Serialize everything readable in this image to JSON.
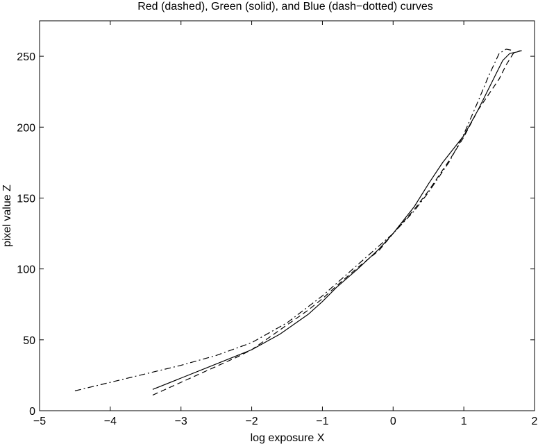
{
  "chart_data": {
    "type": "line",
    "title": "Red (dashed), Green (solid), and Blue (dash−dotted) curves",
    "xlabel": "log exposure X",
    "ylabel": "pixel value Z",
    "xlim": [
      -5,
      2
    ],
    "ylim": [
      0,
      275
    ],
    "xticks": [
      -5,
      -4,
      -3,
      -2,
      -1,
      0,
      1,
      2
    ],
    "xtick_labels": [
      "−5",
      "−4",
      "−3",
      "−2",
      "−1",
      "0",
      "1",
      "2"
    ],
    "yticks": [
      0,
      50,
      100,
      150,
      200,
      250
    ],
    "ytick_labels": [
      "0",
      "50",
      "100",
      "150",
      "200",
      "250"
    ],
    "grid": false,
    "series": [
      {
        "name": "Red",
        "style": "dashed",
        "color": "#000000",
        "x": [
          -3.4,
          -3.0,
          -2.6,
          -2.2,
          -2.0,
          -1.6,
          -1.2,
          -1.0,
          -0.8,
          -0.5,
          -0.2,
          0.0,
          0.3,
          0.5,
          0.8,
          1.0,
          1.2,
          1.5,
          1.6,
          1.7,
          1.8
        ],
        "y": [
          11,
          20,
          29,
          38,
          43,
          57,
          71,
          79,
          88,
          101,
          113,
          125,
          142,
          155,
          177,
          193,
          212,
          234,
          244,
          252,
          254
        ]
      },
      {
        "name": "Green",
        "style": "solid",
        "color": "#000000",
        "x": [
          -3.4,
          -3.0,
          -2.6,
          -2.2,
          -2.0,
          -1.6,
          -1.2,
          -1.0,
          -0.8,
          -0.5,
          -0.2,
          0.0,
          0.3,
          0.5,
          0.7,
          1.0,
          1.2,
          1.4,
          1.55,
          1.65,
          1.75,
          1.82
        ],
        "y": [
          15,
          23,
          31,
          39,
          43,
          54,
          68,
          77,
          87,
          100,
          114,
          125,
          144,
          160,
          175,
          194,
          212,
          232,
          247,
          252,
          253,
          254
        ]
      },
      {
        "name": "Blue",
        "style": "dash-dotted",
        "color": "#000000",
        "x": [
          -4.5,
          -4.0,
          -3.5,
          -3.0,
          -2.5,
          -2.0,
          -1.5,
          -1.0,
          -0.5,
          0.0,
          0.3,
          0.5,
          0.8,
          1.0,
          1.2,
          1.35,
          1.5,
          1.6,
          1.7
        ],
        "y": [
          14,
          20,
          26,
          32,
          39,
          48,
          62,
          81,
          103,
          125,
          141,
          154,
          176,
          195,
          218,
          236,
          252,
          255,
          254
        ]
      }
    ]
  }
}
